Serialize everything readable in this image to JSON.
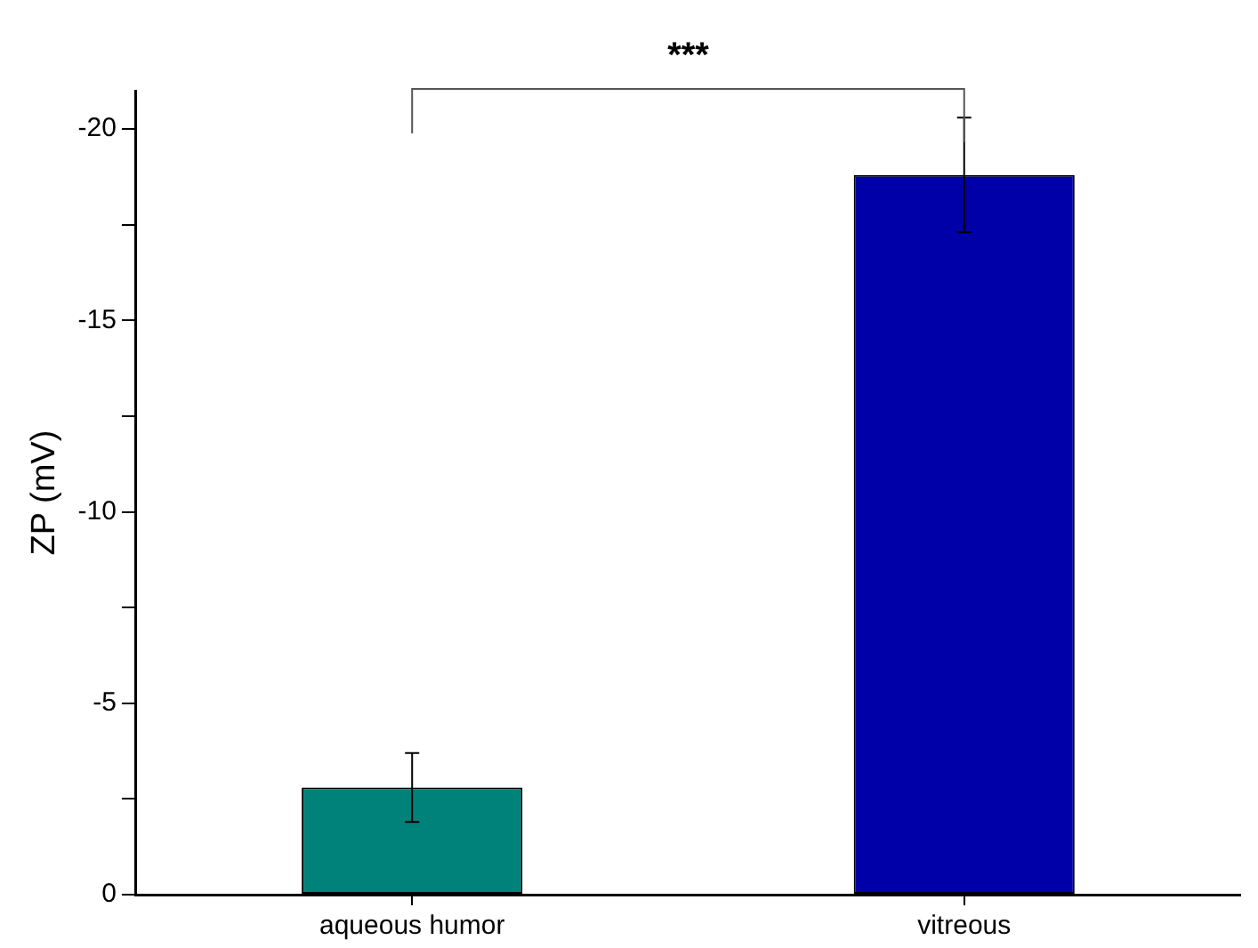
{
  "chart_data": {
    "type": "bar",
    "ylabel": "ZP (mV)",
    "categories": [
      "aqueous humor",
      "vitreous"
    ],
    "values": [
      -2.8,
      -18.8
    ],
    "colors": [
      "#00827a",
      "#0000a8"
    ],
    "errors": [
      0.9,
      1.5
    ],
    "ylim": [
      0,
      -21
    ],
    "yticks": [
      0,
      {
        "value": -2.5,
        "label": null
      },
      -5,
      {
        "value": -7.5,
        "label": null
      },
      -10,
      {
        "value": -12.5,
        "label": null
      },
      -15,
      {
        "value": -17.5,
        "label": null
      },
      -20
    ],
    "annotations": [
      "***"
    ],
    "grid": false,
    "legend": false
  }
}
